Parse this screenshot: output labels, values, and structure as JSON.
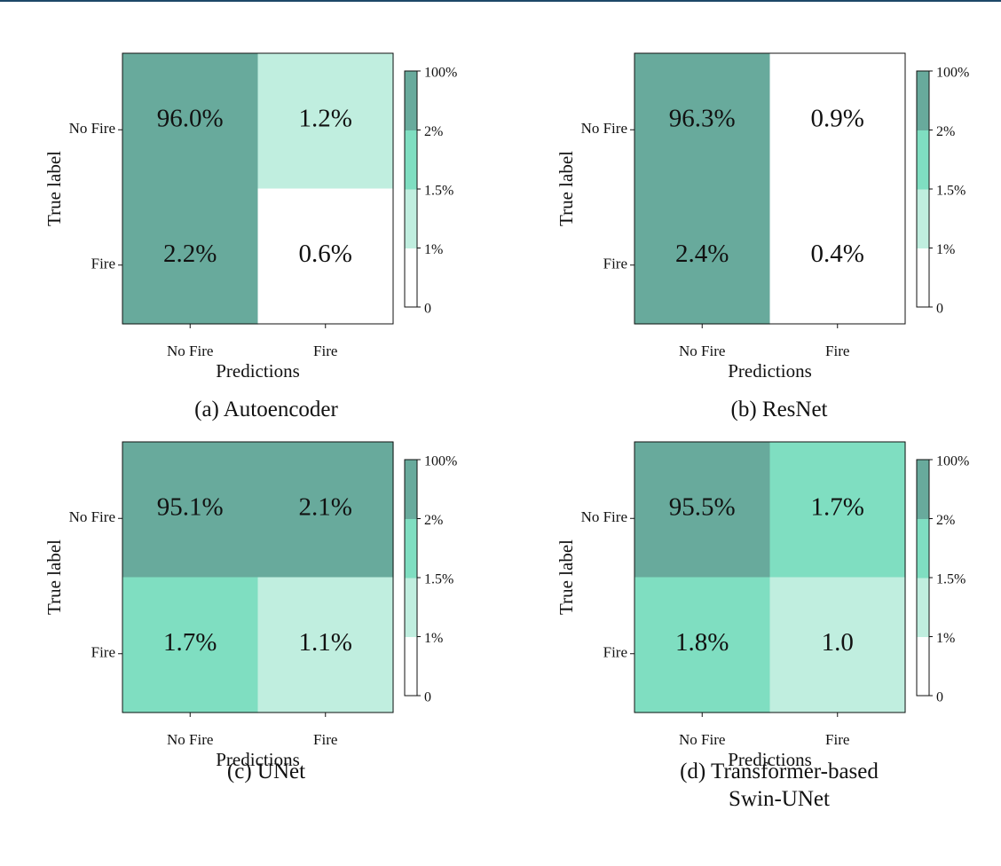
{
  "palette": {
    "level_0": "#ffffff",
    "level_1": "#c0eedf",
    "level_2": "#7fdec1",
    "level_3": "#68aa9c",
    "axis": "#111111",
    "top_rule": "#1d4868"
  },
  "colorbar": {
    "boundaries": [
      0,
      1,
      1.5,
      2,
      100
    ],
    "tick_labels": [
      "0",
      "1%",
      "1.5%",
      "2%",
      "100%"
    ]
  },
  "chart_data": [
    {
      "type": "heatmap",
      "caption": "(a) Autoencoder",
      "xlabel": "Predictions",
      "ylabel": "True label",
      "x_categories": [
        "No Fire",
        "Fire"
      ],
      "y_categories": [
        "No Fire",
        "Fire"
      ],
      "values": [
        [
          96.0,
          1.2
        ],
        [
          2.2,
          0.6
        ]
      ],
      "cell_labels": [
        [
          "96.0%",
          "1.2%"
        ],
        [
          "2.2%",
          "0.6%"
        ]
      ]
    },
    {
      "type": "heatmap",
      "caption": "(b) ResNet",
      "xlabel": "Predictions",
      "ylabel": "True label",
      "x_categories": [
        "No Fire",
        "Fire"
      ],
      "y_categories": [
        "No Fire",
        "Fire"
      ],
      "values": [
        [
          96.3,
          0.9
        ],
        [
          2.4,
          0.4
        ]
      ],
      "cell_labels": [
        [
          "96.3%",
          "0.9%"
        ],
        [
          "2.4%",
          "0.4%"
        ]
      ]
    },
    {
      "type": "heatmap",
      "caption": "(c) UNet",
      "xlabel": "Predictions",
      "ylabel": "True label",
      "x_categories": [
        "No Fire",
        "Fire"
      ],
      "y_categories": [
        "No Fire",
        "Fire"
      ],
      "values": [
        [
          95.1,
          2.1
        ],
        [
          1.7,
          1.1
        ]
      ],
      "cell_labels": [
        [
          "95.1%",
          "2.1%"
        ],
        [
          "1.7%",
          "1.1%"
        ]
      ]
    },
    {
      "type": "heatmap",
      "caption": "(d) Transformer-based\nSwin-UNet",
      "xlabel": "Predictions",
      "ylabel": "True label",
      "x_categories": [
        "No Fire",
        "Fire"
      ],
      "y_categories": [
        "No Fire",
        "Fire"
      ],
      "values": [
        [
          95.5,
          1.7
        ],
        [
          1.8,
          1.0
        ]
      ],
      "cell_labels": [
        [
          "95.5%",
          "1.7%"
        ],
        [
          "1.8%",
          "1.0"
        ]
      ]
    }
  ]
}
